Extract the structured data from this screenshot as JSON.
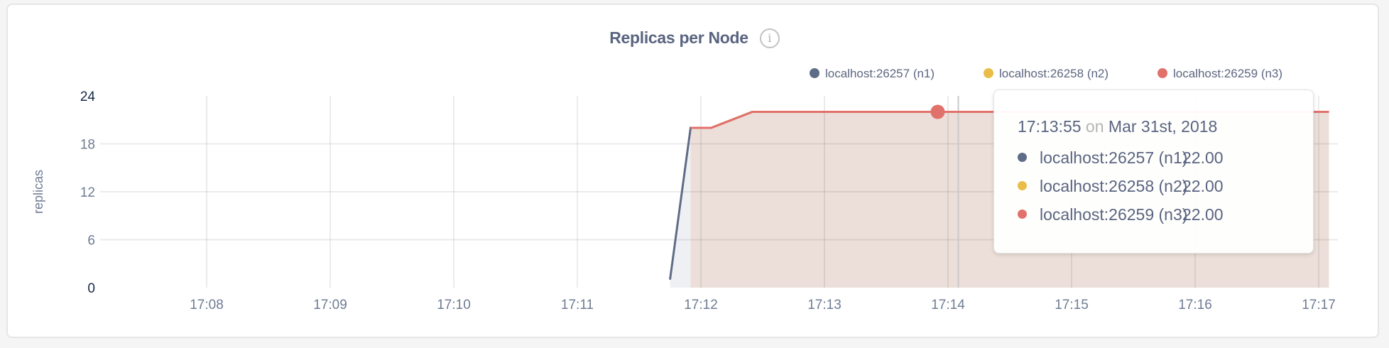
{
  "chart_data": {
    "type": "area",
    "title": "Replicas per Node",
    "ylabel": "replicas",
    "xlabel": "",
    "ylim": [
      0,
      24
    ],
    "yticks": [
      "0",
      "6",
      "12",
      "18",
      "24"
    ],
    "xticks": [
      "17:08",
      "17:09",
      "17:10",
      "17:11",
      "17:12",
      "17:13",
      "17:14",
      "17:15",
      "17:16",
      "17:17"
    ],
    "grid": true,
    "legend_position": "top-right",
    "series": [
      {
        "name": "localhost:26257 (n1)",
        "color": "#5f6c87",
        "points": [
          [
            "17:11:45",
            1
          ],
          [
            "17:11:55",
            20
          ],
          [
            "17:12:05",
            20
          ],
          [
            "17:12:25",
            22
          ],
          [
            "17:17:05",
            22
          ]
        ]
      },
      {
        "name": "localhost:26258 (n2)",
        "color": "#e9bd47",
        "points": [
          [
            "17:11:55",
            20
          ],
          [
            "17:12:05",
            20
          ],
          [
            "17:12:25",
            22
          ],
          [
            "17:17:05",
            22
          ]
        ]
      },
      {
        "name": "localhost:26259 (n3)",
        "color": "#e1716b",
        "points": [
          [
            "17:11:55",
            20
          ],
          [
            "17:12:05",
            20
          ],
          [
            "17:12:25",
            22
          ],
          [
            "17:17:05",
            22
          ]
        ]
      }
    ],
    "hover": {
      "time": "17:13:55"
    }
  },
  "tooltip": {
    "time": "17:13:55",
    "on": "on",
    "date": "Mar 31st, 2018",
    "rows": [
      {
        "label": "localhost:26257 (n1)",
        "value": "22.00",
        "color": "#5f6c87"
      },
      {
        "label": "localhost:26258 (n2)",
        "value": "22.00",
        "color": "#e9bd47"
      },
      {
        "label": "localhost:26259 (n3)",
        "value": "22.00",
        "color": "#e1716b"
      }
    ]
  },
  "info_icon": "info-icon",
  "info_glyph": "i"
}
